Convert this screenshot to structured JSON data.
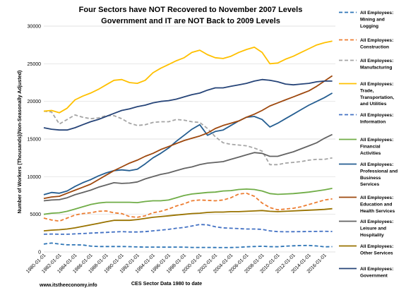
{
  "chart_data": {
    "type": "line",
    "title": [
      "Four Sectors have NOT Recovered to November 2007 Levels",
      "Government and IT are NOT Back to 2009 Levels"
    ],
    "xlabel": "CES Sector Data 1980 to date",
    "ylabel": "Number of Workers (Thousands)(Non-Seasonally Adjusted)",
    "ylim": [
      0,
      30000
    ],
    "yticks": [
      "0",
      "5000",
      "10000",
      "15000",
      "20000",
      "25000",
      "30000"
    ],
    "xticks": [
      "1980-01-01",
      "1982-01-01",
      "1984-01-01",
      "1986-01-01",
      "1988-01-01",
      "1990-01-01",
      "1992-01-01",
      "1994-01-01",
      "1996-01-01",
      "1998-01-01",
      "2000-01-01",
      "2002-01-01",
      "2004-01-01",
      "2006-01-01",
      "2008-01-01",
      "2010-01-01",
      "2012-01-01",
      "2014-01-01",
      "2016-01-01"
    ],
    "x": [
      1980,
      1981,
      1982,
      1983,
      1984,
      1985,
      1986,
      1987,
      1988,
      1989,
      1990,
      1991,
      1992,
      1993,
      1994,
      1995,
      1996,
      1997,
      1998,
      1999,
      2000,
      2001,
      2002,
      2003,
      2004,
      2005,
      2006,
      2007,
      2008,
      2009,
      2010,
      2011,
      2012,
      2013,
      2014,
      2015,
      2016,
      2017
    ],
    "grid": true,
    "legend_position": "right",
    "series": [
      {
        "name": "All Employees: Mining and Logging",
        "color": "#2e75b6",
        "dash": "dash",
        "values": [
          1050,
          1180,
          1050,
          950,
          950,
          930,
          780,
          720,
          720,
          720,
          720,
          700,
          670,
          650,
          650,
          640,
          640,
          650,
          640,
          600,
          600,
          600,
          590,
          580,
          590,
          620,
          680,
          720,
          760,
          700,
          690,
          770,
          820,
          850,
          860,
          800,
          680,
          700
        ]
      },
      {
        "name": "All Employees: Construction",
        "color": "#ed7d31",
        "dash": "dash",
        "values": [
          4500,
          4250,
          4100,
          4500,
          4900,
          5100,
          5200,
          5400,
          5450,
          5200,
          5100,
          4700,
          4600,
          4800,
          5200,
          5400,
          5700,
          6100,
          6400,
          6800,
          6900,
          6850,
          6800,
          6900,
          7200,
          7700,
          7800,
          7400,
          6500,
          5900,
          5600,
          5700,
          5800,
          6000,
          6300,
          6600,
          6900,
          7050
        ]
      },
      {
        "name": "All Employees: Manufacturing",
        "color": "#a5a5a5",
        "dash": "dash",
        "values": [
          18700,
          18600,
          17000,
          17600,
          18200,
          17900,
          17700,
          17800,
          18100,
          18100,
          17700,
          17100,
          16800,
          16900,
          17200,
          17300,
          17300,
          17600,
          17500,
          17300,
          17200,
          16400,
          15300,
          14500,
          14300,
          14200,
          14100,
          13800,
          13400,
          11600,
          11600,
          11800,
          11900,
          12000,
          12200,
          12300,
          12300,
          12500
        ]
      },
      {
        "name": "All Employees: Trade, Transportation, and Utilities",
        "color": "#ffc000",
        "dash": "solid",
        "values": [
          18700,
          18800,
          18500,
          19100,
          20200,
          20700,
          21100,
          21600,
          22200,
          22800,
          22900,
          22500,
          22400,
          22800,
          23800,
          24400,
          24900,
          25400,
          25800,
          26500,
          26800,
          26200,
          25800,
          25700,
          26000,
          26500,
          26900,
          27200,
          26500,
          25000,
          25100,
          25600,
          26000,
          26500,
          27000,
          27500,
          27800,
          28000
        ]
      },
      {
        "name": "All Employees: Information",
        "color": "#4472c4",
        "dash": "dash",
        "values": [
          2350,
          2380,
          2350,
          2350,
          2400,
          2450,
          2500,
          2550,
          2600,
          2650,
          2700,
          2650,
          2650,
          2700,
          2800,
          2900,
          3000,
          3150,
          3250,
          3450,
          3650,
          3600,
          3350,
          3200,
          3150,
          3100,
          3050,
          3050,
          3000,
          2800,
          2700,
          2680,
          2690,
          2700,
          2720,
          2730,
          2750,
          2720
        ]
      },
      {
        "name": "All Employees: Financial Activities",
        "color": "#70ad47",
        "dash": "solid",
        "values": [
          5000,
          5150,
          5200,
          5400,
          5700,
          6000,
          6300,
          6500,
          6600,
          6600,
          6600,
          6600,
          6550,
          6700,
          6800,
          6800,
          6900,
          7200,
          7500,
          7700,
          7800,
          7900,
          7950,
          8100,
          8150,
          8300,
          8350,
          8300,
          8100,
          7750,
          7650,
          7700,
          7750,
          7850,
          7950,
          8100,
          8250,
          8450
        ]
      },
      {
        "name": "All Employees: Professional and Business Services",
        "color": "#255e91",
        "dash": "solid",
        "values": [
          7600,
          7900,
          7800,
          8100,
          8700,
          9200,
          9600,
          10100,
          10500,
          10800,
          10900,
          10800,
          11000,
          11700,
          12500,
          13100,
          13800,
          14700,
          15500,
          16300,
          16900,
          15500,
          16000,
          16200,
          16800,
          17400,
          17900,
          18000,
          17600,
          16600,
          17100,
          17700,
          18300,
          18900,
          19500,
          20000,
          20500,
          21100
        ]
      },
      {
        "name": "All Employees: Education and Health Services",
        "color": "#9e480e",
        "dash": "solid",
        "values": [
          7100,
          7300,
          7400,
          7800,
          8200,
          8600,
          9000,
          9600,
          10200,
          10800,
          11300,
          11800,
          12200,
          12700,
          13100,
          13600,
          14000,
          14400,
          14800,
          15100,
          15400,
          15800,
          16400,
          16800,
          17100,
          17400,
          17900,
          18300,
          18800,
          19400,
          19800,
          20200,
          20600,
          21000,
          21400,
          22000,
          22700,
          23400
        ]
      },
      {
        "name": "All Employees: Leisure and Hospitality",
        "color": "#636363",
        "dash": "solid",
        "values": [
          6800,
          6900,
          6950,
          7200,
          7600,
          7900,
          8200,
          8600,
          8900,
          9200,
          9100,
          9150,
          9300,
          9700,
          10000,
          10300,
          10500,
          10800,
          11100,
          11300,
          11600,
          11800,
          11900,
          12000,
          12300,
          12600,
          12900,
          13200,
          13100,
          12700,
          12700,
          13000,
          13300,
          13700,
          14100,
          14500,
          15100,
          15600
        ]
      },
      {
        "name": "All Employees: Other Services",
        "color": "#997300",
        "dash": "solid",
        "values": [
          2800,
          2900,
          2950,
          3050,
          3200,
          3400,
          3600,
          3800,
          4000,
          4200,
          4200,
          4200,
          4300,
          4450,
          4600,
          4700,
          4800,
          4900,
          5000,
          5100,
          5150,
          5250,
          5300,
          5300,
          5350,
          5350,
          5400,
          5450,
          5500,
          5400,
          5350,
          5400,
          5450,
          5500,
          5550,
          5600,
          5650,
          5750
        ]
      },
      {
        "name": "All Employees: Government",
        "color": "#264478",
        "dash": "solid",
        "values": [
          16500,
          16300,
          16200,
          16200,
          16500,
          16900,
          17300,
          17600,
          18000,
          18400,
          18800,
          19000,
          19300,
          19500,
          19800,
          20000,
          20100,
          20300,
          20600,
          20900,
          21100,
          21500,
          21800,
          21800,
          22000,
          22200,
          22400,
          22700,
          22900,
          22800,
          22600,
          22300,
          22200,
          22300,
          22400,
          22600,
          22700,
          22700
        ]
      }
    ]
  },
  "source_text": "www.itstheeconomy.info"
}
